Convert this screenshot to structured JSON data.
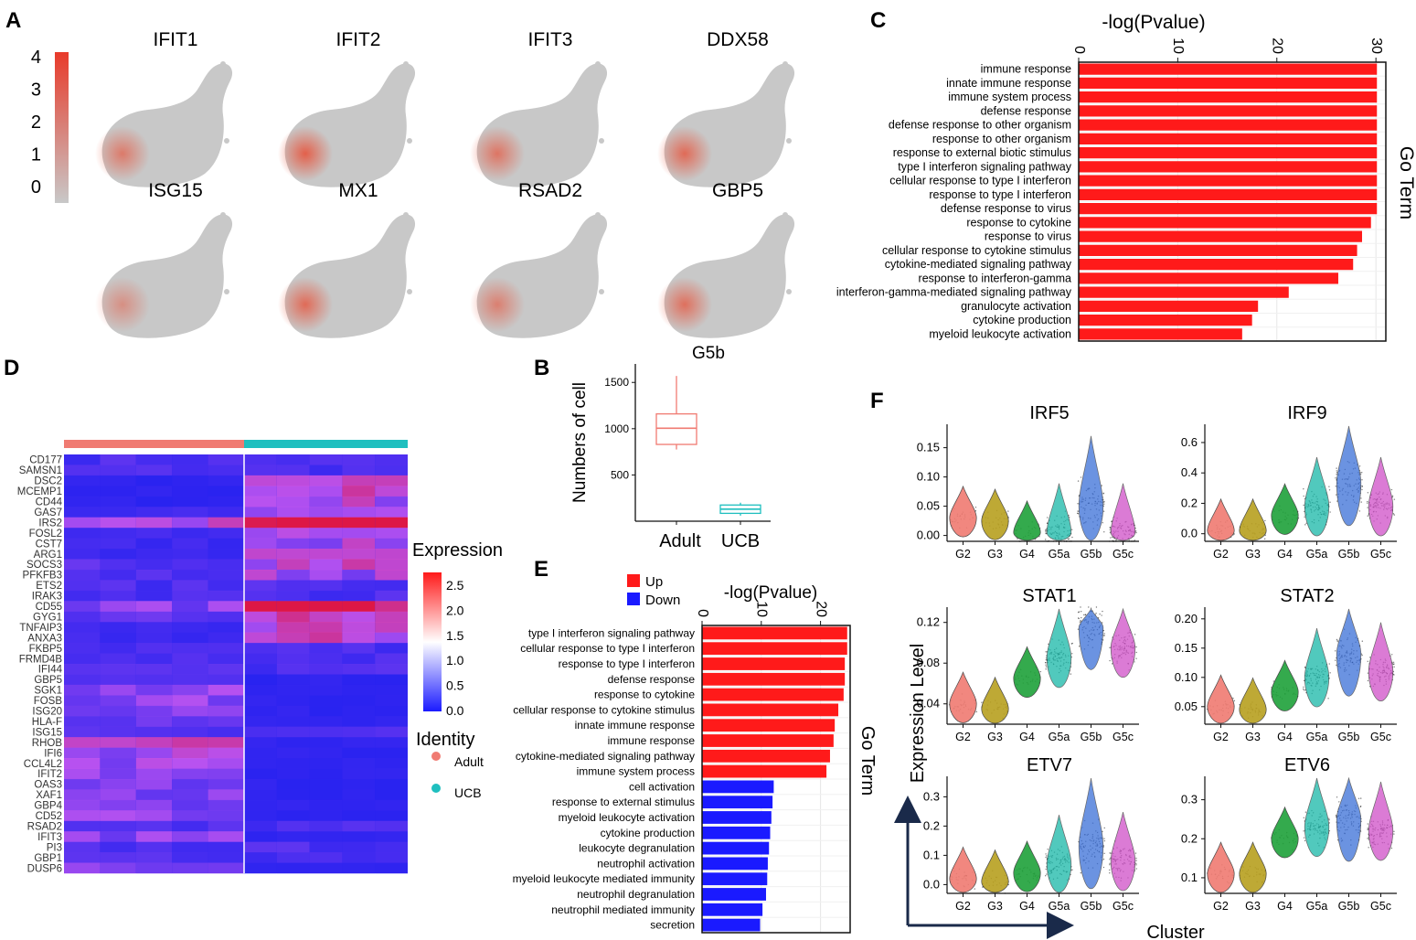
{
  "panel_labels": {
    "A": "A",
    "B": "B",
    "C": "C",
    "D": "D",
    "E": "E",
    "F": "F"
  },
  "colors": {
    "red": "#ff1a1a",
    "blue": "#1a1aff",
    "adult": "#f07b72",
    "ucb": "#1fbfbf",
    "grey": "#c8c8c8"
  },
  "umap": {
    "colorbar_ticks": [
      "4",
      "3",
      "2",
      "1",
      "0"
    ],
    "genes": [
      "IFIT1",
      "IFIT2",
      "IFIT3",
      "DDX58",
      "ISG15",
      "MX1",
      "RSAD2",
      "GBP5"
    ],
    "intensity": [
      0.75,
      1.0,
      0.8,
      0.9,
      0.55,
      0.9,
      0.7,
      0.85
    ]
  },
  "chart_data": [
    {
      "id": "C",
      "type": "bar",
      "orientation": "horizontal",
      "title": "-log(Pvalue)",
      "ylabel": "Go Term",
      "xlim": [
        0,
        31
      ],
      "xticks": [
        0,
        10,
        20,
        30
      ],
      "categories": [
        "immune response",
        "innate immune response",
        "immune system process",
        "defense response",
        "defense response to other organism",
        "response to other organism",
        "response to external biotic stimulus",
        "type I interferon signaling pathway",
        "cellular response to type I interferon",
        "response to type I interferon",
        "defense response to virus",
        "response to cytokine",
        "response to virus",
        "cellular response to cytokine stimulus",
        "cytokine-mediated signaling pathway",
        "response to interferon-gamma",
        "interferon-gamma-mediated signaling pathway",
        "granulocyte activation",
        "cytokine production",
        "myeloid leukocyte activation"
      ],
      "values": [
        30.1,
        30.1,
        30.1,
        30.1,
        30.1,
        30.1,
        30.1,
        30.1,
        30.1,
        30.1,
        30.1,
        29.5,
        28.6,
        28.1,
        27.7,
        26.2,
        21.2,
        18.1,
        17.5,
        16.5
      ]
    },
    {
      "id": "B",
      "type": "box",
      "title": "G5b",
      "ylabel": "Numbers of cell",
      "ylim": [
        0,
        1700
      ],
      "yticks": [
        500,
        1000,
        1500
      ],
      "categories": [
        "Adult",
        "UCB"
      ],
      "boxes": [
        {
          "name": "Adult",
          "min": 775,
          "q1": 830,
          "median": 1005,
          "q3": 1160,
          "max": 1570
        },
        {
          "name": "UCB",
          "min": 60,
          "q1": 85,
          "median": 130,
          "q3": 175,
          "max": 200
        }
      ]
    },
    {
      "id": "D",
      "type": "heatmap",
      "legend_title": "Expression",
      "legend_ticks": [
        "2.5",
        "2.0",
        "1.5",
        "1.0",
        "0.5",
        "0.0"
      ],
      "identity_title": "Identity",
      "groups": [
        "Adult",
        "UCB"
      ],
      "rows": [
        "CD177",
        "SAMSN1",
        "DSC2",
        "MCEMP1",
        "CD44",
        "GAS7",
        "IRS2",
        "FOSL2",
        "CST7",
        "ARG1",
        "SOCS3",
        "PFKFB3",
        "ETS2",
        "IRAK3",
        "CD55",
        "GYG1",
        "TNFAIP3",
        "ANXA3",
        "FKBP5",
        "FRMD4B",
        "IFI44",
        "GBP5",
        "SGK1",
        "FOSB",
        "ISG20",
        "HLA-F",
        "ISG15",
        "RHOB",
        "IFI6",
        "CCL4L2",
        "IFIT2",
        "OAS3",
        "XAF1",
        "GBP4",
        "CD52",
        "RSAD2",
        "IFIT3",
        "PI3",
        "GBP1",
        "DUSP6"
      ]
    },
    {
      "id": "E",
      "type": "bar",
      "orientation": "horizontal",
      "title": "-log(Pvalue)",
      "ylabel": "Go Term",
      "xlim": [
        0,
        25
      ],
      "xticks": [
        0,
        10,
        20
      ],
      "legend": [
        "Up",
        "Down"
      ],
      "categories": [
        "type I interferon signaling pathway",
        "cellular response to type I interferon",
        "response to type I interferon",
        "defense response",
        "response to cytokine",
        "cellular response to cytokine stimulus",
        "innate immune response",
        "immune response",
        "cytokine-mediated signaling pathway",
        "immune system process",
        "cell activation",
        "response to external stimulus",
        "myeloid leukocyte activation",
        "cytokine production",
        "leukocyte degranulation",
        "neutrophil activation",
        "myeloid leukocyte mediated immunity",
        "neutrophil degranulation",
        "neutrophil mediated immunity",
        "secretion"
      ],
      "values": [
        24.5,
        24.5,
        24.1,
        24.1,
        23.9,
        23.0,
        22.4,
        22.2,
        21.6,
        21.0,
        12.1,
        11.9,
        11.7,
        11.5,
        11.3,
        11.1,
        11.0,
        10.8,
        10.2,
        9.8
      ],
      "direction": [
        "Up",
        "Up",
        "Up",
        "Up",
        "Up",
        "Up",
        "Up",
        "Up",
        "Up",
        "Up",
        "Down",
        "Down",
        "Down",
        "Down",
        "Down",
        "Down",
        "Down",
        "Down",
        "Down",
        "Down"
      ]
    },
    {
      "id": "F",
      "type": "violin",
      "xlabel": "Cluster",
      "ylabel": "Expression Level",
      "categories": [
        "G2",
        "G3",
        "G4",
        "G5a",
        "G5b",
        "G5c"
      ],
      "cluster_colors": [
        "#f07b72",
        "#b8a020",
        "#1fa13a",
        "#18b8a8",
        "#3a6fd8",
        "#d050c8"
      ],
      "panels": [
        {
          "gene": "IRF5",
          "yticks": [
            "0.15",
            "0.10",
            "0.05",
            "0.00"
          ],
          "ytick_values": [
            0.15,
            0.1,
            0.05,
            0.0
          ],
          "ylim": [
            -0.01,
            0.19
          ],
          "medians": [
            0.03,
            0.025,
            0.005,
            0.005,
            0.05,
            0.005
          ]
        },
        {
          "gene": "IRF9",
          "yticks": [
            "0.6",
            "0.4",
            "0.2",
            "0.0"
          ],
          "ytick_values": [
            0.6,
            0.4,
            0.2,
            0.0
          ],
          "ylim": [
            -0.05,
            0.72
          ],
          "medians": [
            0.02,
            0.02,
            0.12,
            0.18,
            0.33,
            0.18
          ]
        },
        {
          "gene": "STAT1",
          "yticks": [
            "0.12",
            "0.08",
            "0.04"
          ],
          "ytick_values": [
            0.12,
            0.08,
            0.04
          ],
          "ylim": [
            0.02,
            0.135
          ],
          "medians": [
            0.04,
            0.035,
            0.065,
            0.085,
            0.115,
            0.095
          ]
        },
        {
          "gene": "STAT2",
          "yticks": [
            "0.20",
            "0.15",
            "0.10",
            "0.05"
          ],
          "ytick_values": [
            0.2,
            0.15,
            0.1,
            0.05
          ],
          "ylim": [
            0.02,
            0.22
          ],
          "medians": [
            0.05,
            0.045,
            0.075,
            0.1,
            0.14,
            0.11
          ]
        },
        {
          "gene": "ETV7",
          "yticks": [
            "0.3",
            "0.2",
            "0.1",
            "0.0"
          ],
          "ytick_values": [
            0.3,
            0.2,
            0.1,
            0.0
          ],
          "ylim": [
            -0.03,
            0.37
          ],
          "medians": [
            0.02,
            0.01,
            0.04,
            0.07,
            0.13,
            0.08
          ]
        },
        {
          "gene": "ETV6",
          "yticks": [
            "0.3",
            "0.2",
            "0.1"
          ],
          "ytick_values": [
            0.3,
            0.2,
            0.1
          ],
          "ylim": [
            0.06,
            0.36
          ],
          "medians": [
            0.11,
            0.11,
            0.2,
            0.23,
            0.25,
            0.22
          ]
        }
      ]
    }
  ]
}
